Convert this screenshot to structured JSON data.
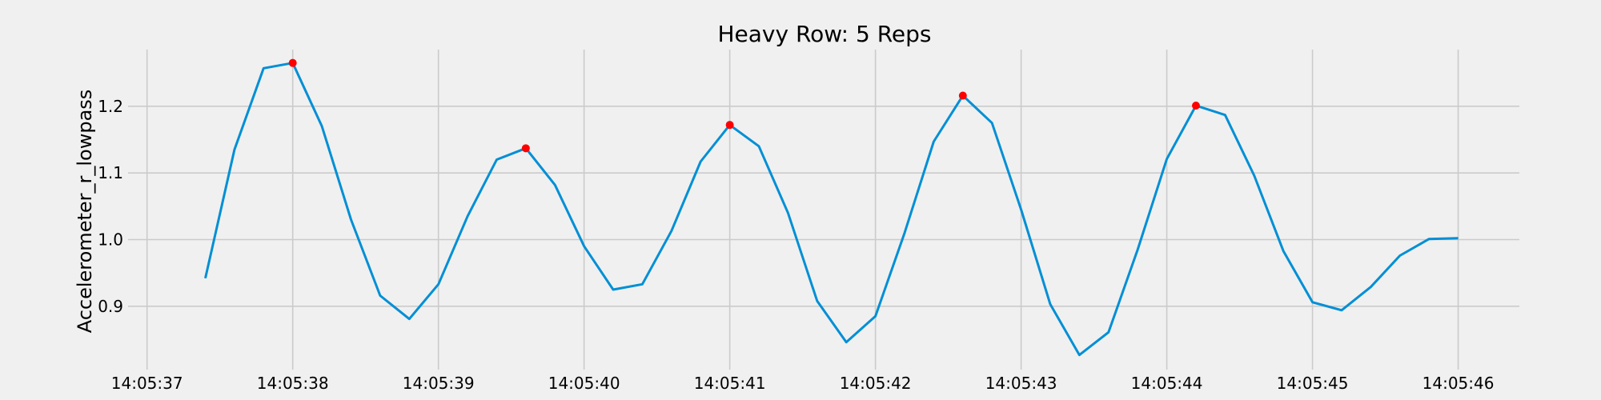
{
  "chart_data": {
    "type": "line",
    "title": "Heavy Row: 5 Reps",
    "xlabel": "",
    "ylabel": "Accelerometer_r_lowpass",
    "x_ticks": [
      "14:05:37",
      "14:05:38",
      "14:05:39",
      "14:05:40",
      "14:05:41",
      "14:05:42",
      "14:05:43",
      "14:05:44",
      "14:05:45",
      "14:05:46"
    ],
    "y_ticks": [
      "0.9",
      "1.0",
      "1.1",
      "1.2"
    ],
    "xlim": [
      "14:05:36.65",
      "14:05:46.42"
    ],
    "ylim": [
      0.805,
      1.285
    ],
    "grid": true,
    "series": [
      {
        "color": "#008fd5",
        "x": [
          "14:05:37.4",
          "14:05:37.6",
          "14:05:37.8",
          "14:05:38.0",
          "14:05:38.2",
          "14:05:38.4",
          "14:05:38.6",
          "14:05:38.8",
          "14:05:39.0",
          "14:05:39.2",
          "14:05:39.4",
          "14:05:39.6",
          "14:05:39.8",
          "14:05:40.0",
          "14:05:40.2",
          "14:05:40.4",
          "14:05:40.6",
          "14:05:40.8",
          "14:05:41.0",
          "14:05:41.2",
          "14:05:41.4",
          "14:05:41.6",
          "14:05:41.8",
          "14:05:42.0",
          "14:05:42.2",
          "14:05:42.4",
          "14:05:42.6",
          "14:05:42.8",
          "14:05:43.0",
          "14:05:43.2",
          "14:05:43.4",
          "14:05:43.6",
          "14:05:43.8",
          "14:05:44.0",
          "14:05:44.2",
          "14:05:44.4",
          "14:05:44.6",
          "14:05:44.8",
          "14:05:45.0",
          "14:05:45.2",
          "14:05:45.4",
          "14:05:45.6",
          "14:05:45.8",
          "14:05:46.0"
        ],
        "values": [
          0.942,
          1.135,
          1.257,
          1.265,
          1.17,
          1.03,
          0.916,
          0.881,
          0.933,
          1.035,
          1.12,
          1.137,
          1.082,
          0.99,
          0.925,
          0.933,
          1.013,
          1.117,
          1.172,
          1.14,
          1.04,
          0.908,
          0.846,
          0.885,
          1.01,
          1.147,
          1.216,
          1.175,
          1.045,
          0.903,
          0.827,
          0.861,
          0.985,
          1.121,
          1.201,
          1.187,
          1.096,
          0.983,
          0.906,
          0.894,
          0.929,
          0.976,
          1.001,
          1.002
        ]
      }
    ],
    "peaks": [
      {
        "x": "14:05:38.0",
        "y": 1.265
      },
      {
        "x": "14:05:39.6",
        "y": 1.137
      },
      {
        "x": "14:05:41.0",
        "y": 1.172
      },
      {
        "x": "14:05:42.6",
        "y": 1.216
      },
      {
        "x": "14:05:44.2",
        "y": 1.201
      }
    ],
    "peak_color": "#ff0000"
  }
}
